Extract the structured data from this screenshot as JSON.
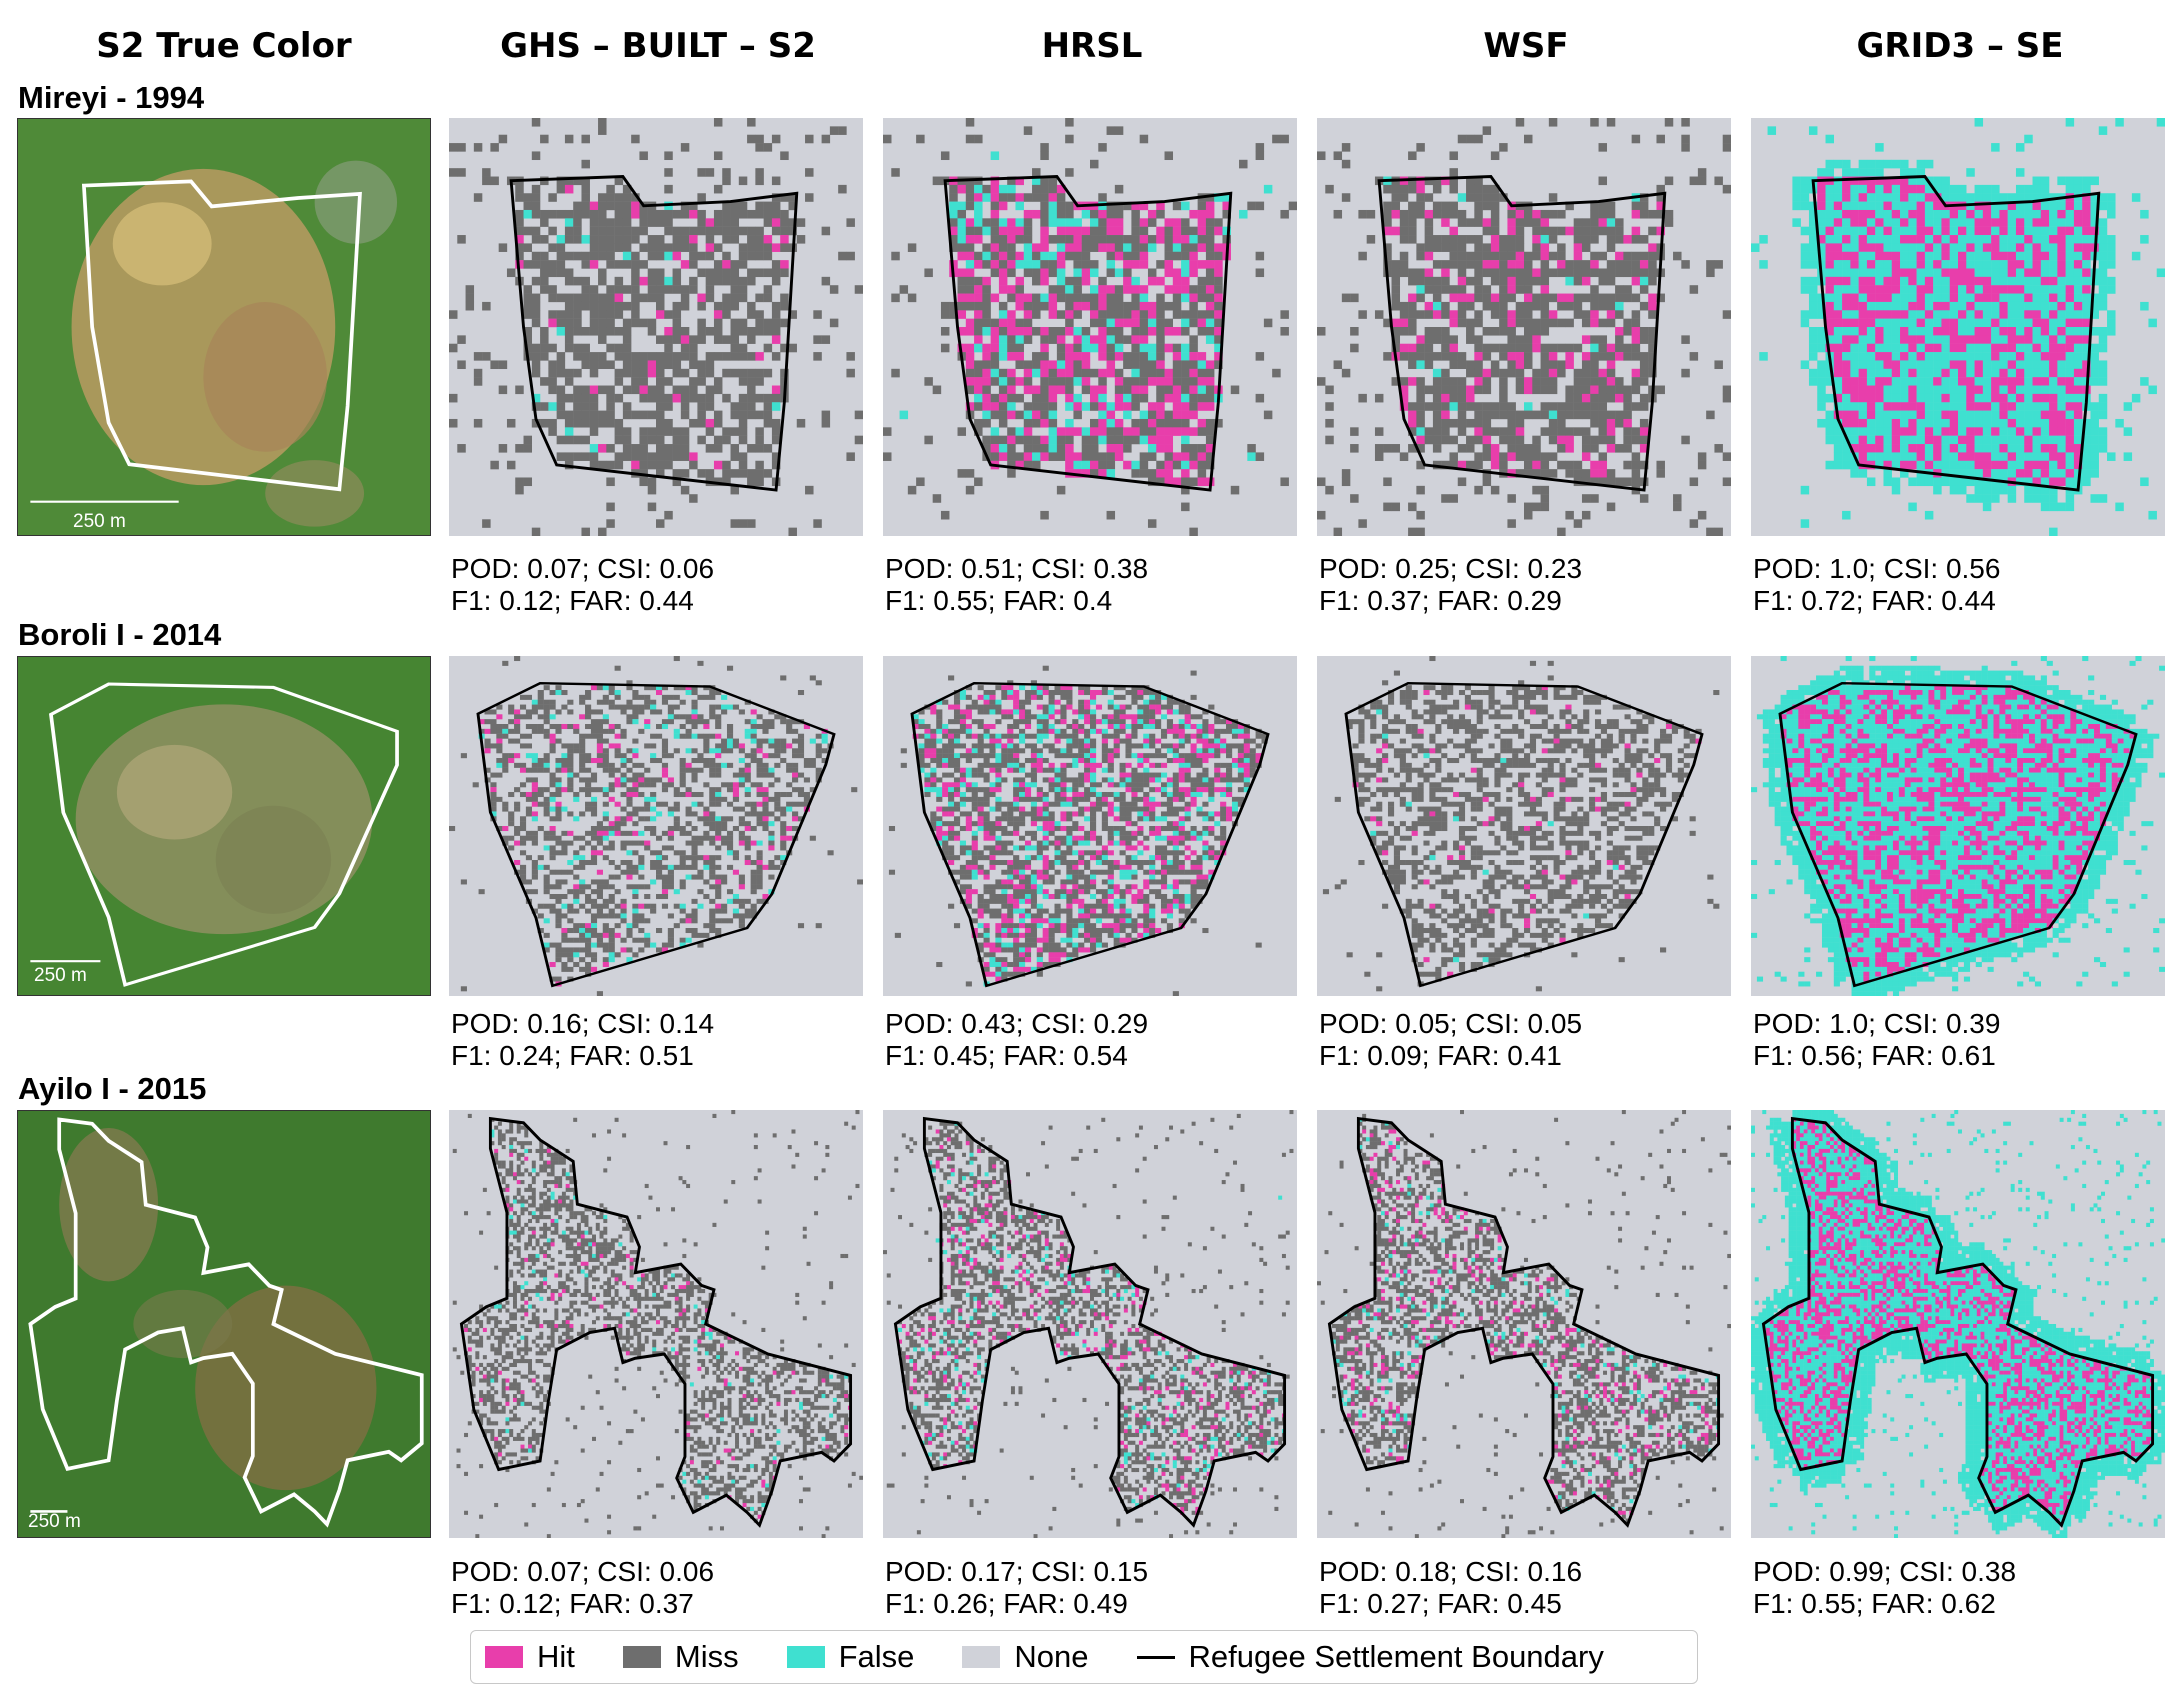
{
  "columns": [
    "S2 True Color",
    "GHS – BUILT – S2",
    "HRSL",
    "WSF",
    "GRID3 – SE"
  ],
  "colors": {
    "hit": "#e83eab",
    "miss": "#6e6e6e",
    "false": "#3fe0d0",
    "none": "#d0d2d9",
    "boundary": "#000000"
  },
  "rows": [
    {
      "title": "Mireyi - 1994",
      "scalebar": "250 m",
      "metrics": [
        {
          "line1": "POD: 0.07; CSI: 0.06",
          "line2": "F1: 0.12; FAR: 0.44"
        },
        {
          "line1": "POD: 0.51; CSI: 0.38",
          "line2": "F1: 0.55; FAR: 0.4"
        },
        {
          "line1": "POD: 0.25; CSI: 0.23",
          "line2": "F1: 0.37; FAR: 0.29"
        },
        {
          "line1": "POD: 1.0; CSI: 0.56",
          "line2": "F1: 0.72; FAR: 0.44"
        }
      ]
    },
    {
      "title": "Boroli I - 2014",
      "scalebar": "250 m",
      "metrics": [
        {
          "line1": "POD: 0.16; CSI: 0.14",
          "line2": "F1: 0.24; FAR: 0.51"
        },
        {
          "line1": "POD: 0.43; CSI: 0.29",
          "line2": "F1: 0.45; FAR: 0.54"
        },
        {
          "line1": "POD: 0.05; CSI: 0.05",
          "line2": "F1: 0.09; FAR: 0.41"
        },
        {
          "line1": "POD: 1.0; CSI: 0.39",
          "line2": "F1: 0.56; FAR: 0.61"
        }
      ]
    },
    {
      "title": "Ayilo I - 2015",
      "scalebar": "250 m",
      "metrics": [
        {
          "line1": "POD: 0.07; CSI: 0.06",
          "line2": "F1: 0.12; FAR: 0.37"
        },
        {
          "line1": "POD: 0.17; CSI: 0.15",
          "line2": "F1: 0.26; FAR: 0.49"
        },
        {
          "line1": "POD: 0.18; CSI: 0.16",
          "line2": "F1: 0.27; FAR: 0.45"
        },
        {
          "line1": "POD: 0.99; CSI: 0.38",
          "line2": "F1: 0.55; FAR: 0.62"
        }
      ]
    }
  ],
  "legend": {
    "hit": "Hit",
    "miss": "Miss",
    "false": "False",
    "none": "None",
    "boundary": "Refugee Settlement Boundary"
  }
}
